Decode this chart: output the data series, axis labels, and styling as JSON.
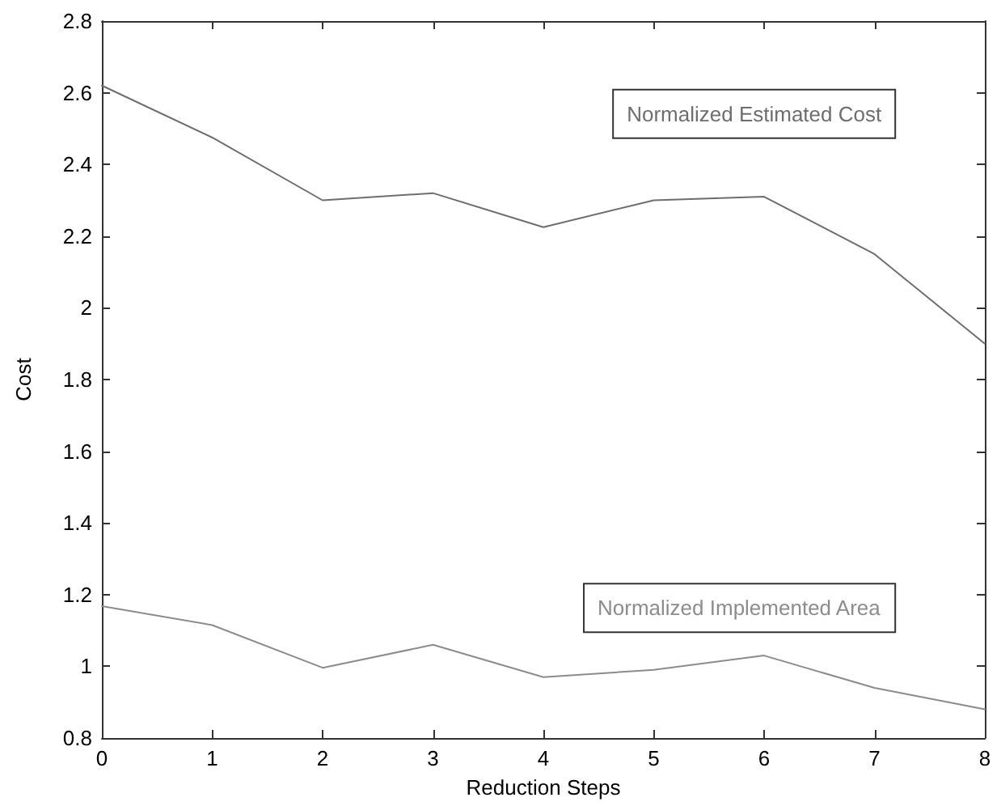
{
  "chart_data": {
    "type": "line",
    "xlabel": "Reduction Steps",
    "ylabel": "Cost",
    "x": [
      0,
      1,
      2,
      3,
      4,
      5,
      6,
      7,
      8
    ],
    "series": [
      {
        "name": "Normalized Estimated Cost",
        "color": "#6e6e6e",
        "values": [
          2.62,
          2.475,
          2.3,
          2.32,
          2.225,
          2.3,
          2.31,
          2.15,
          1.9
        ]
      },
      {
        "name": "Normalized Implemented Area",
        "color": "#8c8c8c",
        "values": [
          1.168,
          1.115,
          0.996,
          1.06,
          0.97,
          0.99,
          1.03,
          0.94,
          0.88
        ]
      }
    ],
    "xlim": [
      0,
      8
    ],
    "xticks": [
      0,
      1,
      2,
      3,
      4,
      5,
      6,
      7,
      8
    ],
    "ylim": [
      0.8,
      2.8
    ],
    "yticks": [
      0.8,
      1,
      1.2,
      1.4,
      1.6,
      1.8,
      2,
      2.2,
      2.4,
      2.6,
      2.8
    ],
    "grid": false,
    "legend": false,
    "marker": "none",
    "line_style": "solid"
  }
}
